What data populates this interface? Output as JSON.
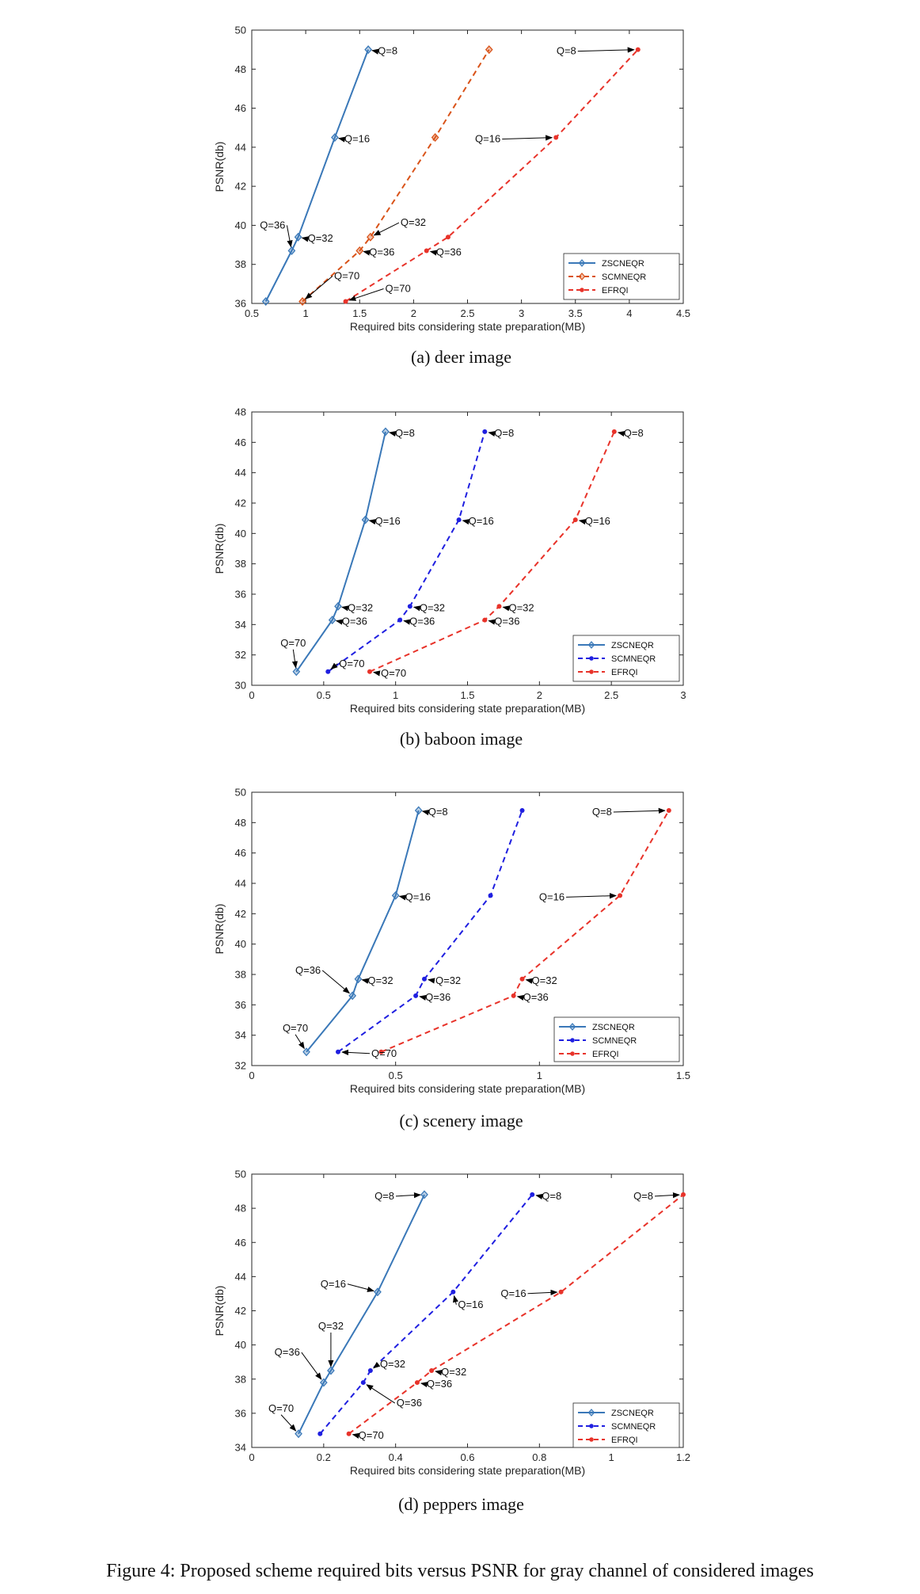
{
  "figure_caption": "Figure 4: Proposed scheme required bits versus PSNR for gray channel of considered images",
  "chart_data": [
    {
      "type": "line",
      "caption": "(a) deer image",
      "xlabel": "Required bits considering state preparation(MB)",
      "ylabel": "PSNR(db)",
      "xlim": [
        0.5,
        4.5
      ],
      "ylim": [
        36,
        50
      ],
      "xticks": [
        "0.5",
        "1",
        "1.5",
        "2",
        "2.5",
        "3",
        "3.5",
        "4",
        "4.5"
      ],
      "yticks": [
        "36",
        "38",
        "40",
        "42",
        "44",
        "46",
        "48",
        "50"
      ],
      "legend_position": "bottom-right",
      "series": [
        {
          "name": "ZSCNEQR",
          "color": "#3a78b8",
          "style": "solid",
          "marker": "diamond",
          "points": [
            [
              0.63,
              36.1
            ],
            [
              0.87,
              38.7
            ],
            [
              0.93,
              39.4
            ],
            [
              1.27,
              44.5
            ],
            [
              1.58,
              49.0
            ]
          ]
        },
        {
          "name": "SCMNEQR",
          "color": "#d95319",
          "style": "dashed",
          "marker": "diamond",
          "points": [
            [
              0.97,
              36.1
            ],
            [
              1.5,
              38.7
            ],
            [
              1.6,
              39.4
            ],
            [
              2.2,
              44.5
            ],
            [
              2.7,
              49.0
            ]
          ]
        },
        {
          "name": "EFRQI",
          "color": "#e8332a",
          "style": "dashed",
          "marker": "dot",
          "points": [
            [
              1.37,
              36.1
            ],
            [
              2.12,
              38.7
            ],
            [
              2.32,
              39.4
            ],
            [
              3.32,
              44.5
            ],
            [
              4.08,
              49.0
            ]
          ]
        }
      ],
      "annotations": [
        "Q=8",
        "Q=8",
        "Q=16",
        "Q=16",
        "Q=32",
        "Q=32",
        "Q=36",
        "Q=36",
        "Q=36",
        "Q=70",
        "Q=70"
      ]
    },
    {
      "type": "line",
      "caption": "(b) baboon image",
      "xlabel": "Required bits considering state preparation(MB)",
      "ylabel": "PSNR(db)",
      "xlim": [
        0,
        3
      ],
      "ylim": [
        30,
        48
      ],
      "xticks": [
        "0",
        "0.5",
        "1",
        "1.5",
        "2",
        "2.5",
        "3"
      ],
      "yticks": [
        "30",
        "32",
        "34",
        "36",
        "38",
        "40",
        "42",
        "44",
        "46",
        "48"
      ],
      "legend_position": "bottom-right",
      "series": [
        {
          "name": "ZSCNEQR",
          "color": "#3a78b8",
          "style": "solid",
          "marker": "diamond",
          "points": [
            [
              0.31,
              30.9
            ],
            [
              0.56,
              34.3
            ],
            [
              0.6,
              35.2
            ],
            [
              0.79,
              40.9
            ],
            [
              0.93,
              46.7
            ]
          ]
        },
        {
          "name": "SCMNEQR",
          "color": "#1f1fe0",
          "style": "dashed",
          "marker": "dot",
          "points": [
            [
              0.53,
              30.9
            ],
            [
              1.03,
              34.3
            ],
            [
              1.1,
              35.2
            ],
            [
              1.44,
              40.9
            ],
            [
              1.62,
              46.7
            ]
          ]
        },
        {
          "name": "EFRQI",
          "color": "#e8332a",
          "style": "dashed",
          "marker": "dot",
          "points": [
            [
              0.82,
              30.9
            ],
            [
              1.62,
              34.3
            ],
            [
              1.72,
              35.2
            ],
            [
              2.25,
              40.9
            ],
            [
              2.52,
              46.7
            ]
          ]
        }
      ],
      "annotations": [
        "Q=8",
        "Q=8",
        "Q=8",
        "Q=16",
        "Q=16",
        "Q=16",
        "Q=32",
        "Q=32",
        "Q=32",
        "Q=36",
        "Q=36",
        "Q=36",
        "Q=70",
        "Q=70",
        "Q=70"
      ]
    },
    {
      "type": "line",
      "caption": "(c) scenery image",
      "xlabel": "Required bits considering state preparation(MB)",
      "ylabel": "PSNR(db)",
      "xlim": [
        0,
        1.5
      ],
      "ylim": [
        32,
        50
      ],
      "xticks": [
        "0",
        "0.5",
        "1",
        "1.5"
      ],
      "yticks": [
        "32",
        "34",
        "36",
        "38",
        "40",
        "42",
        "44",
        "46",
        "48",
        "50"
      ],
      "legend_position": "bottom-right",
      "series": [
        {
          "name": "ZSCNEQR",
          "color": "#3a78b8",
          "style": "solid",
          "marker": "diamond",
          "points": [
            [
              0.19,
              32.9
            ],
            [
              0.35,
              36.6
            ],
            [
              0.37,
              37.7
            ],
            [
              0.5,
              43.2
            ],
            [
              0.58,
              48.8
            ]
          ]
        },
        {
          "name": "SCMNEQR",
          "color": "#1f1fe0",
          "style": "dashed",
          "marker": "dot",
          "points": [
            [
              0.3,
              32.9
            ],
            [
              0.57,
              36.6
            ],
            [
              0.6,
              37.7
            ],
            [
              0.83,
              43.2
            ],
            [
              0.94,
              48.8
            ]
          ]
        },
        {
          "name": "EFRQI",
          "color": "#e8332a",
          "style": "dashed",
          "marker": "dot",
          "points": [
            [
              0.45,
              32.9
            ],
            [
              0.91,
              36.6
            ],
            [
              0.94,
              37.7
            ],
            [
              1.28,
              43.2
            ],
            [
              1.45,
              48.8
            ]
          ]
        }
      ],
      "annotations": [
        "Q=8",
        "Q=8",
        "Q=16",
        "Q=16",
        "Q=32",
        "Q=32",
        "Q=32",
        "Q=36",
        "Q=36",
        "Q=36",
        "Q=70",
        "Q=70"
      ]
    },
    {
      "type": "line",
      "caption": "(d) peppers image",
      "xlabel": "Required bits considering state preparation(MB)",
      "ylabel": "PSNR(db)",
      "xlim": [
        0,
        1.2
      ],
      "ylim": [
        34,
        50
      ],
      "xticks": [
        "0",
        "0.2",
        "0.4",
        "0.6",
        "0.8",
        "1",
        "1.2"
      ],
      "yticks": [
        "34",
        "36",
        "38",
        "40",
        "42",
        "44",
        "46",
        "48",
        "50"
      ],
      "legend_position": "bottom-right",
      "series": [
        {
          "name": "ZSCNEQR",
          "color": "#3a78b8",
          "style": "solid",
          "marker": "diamond",
          "points": [
            [
              0.13,
              34.8
            ],
            [
              0.2,
              37.8
            ],
            [
              0.22,
              38.5
            ],
            [
              0.35,
              43.1
            ],
            [
              0.48,
              48.8
            ]
          ]
        },
        {
          "name": "SCMNEQR",
          "color": "#1f1fe0",
          "style": "dashed",
          "marker": "dot",
          "points": [
            [
              0.19,
              34.8
            ],
            [
              0.31,
              37.8
            ],
            [
              0.33,
              38.5
            ],
            [
              0.56,
              43.1
            ],
            [
              0.78,
              48.8
            ]
          ]
        },
        {
          "name": "EFRQI",
          "color": "#e8332a",
          "style": "dashed",
          "marker": "dot",
          "points": [
            [
              0.27,
              34.8
            ],
            [
              0.46,
              37.8
            ],
            [
              0.5,
              38.5
            ],
            [
              0.86,
              43.1
            ],
            [
              1.2,
              48.8
            ]
          ]
        }
      ],
      "annotations": [
        "Q=8",
        "Q=8",
        "Q=8",
        "Q=16",
        "Q=16",
        "Q=16",
        "Q=32",
        "Q=32",
        "Q=32",
        "Q=36",
        "Q=36",
        "Q=36",
        "Q=70",
        "Q=70"
      ]
    }
  ]
}
